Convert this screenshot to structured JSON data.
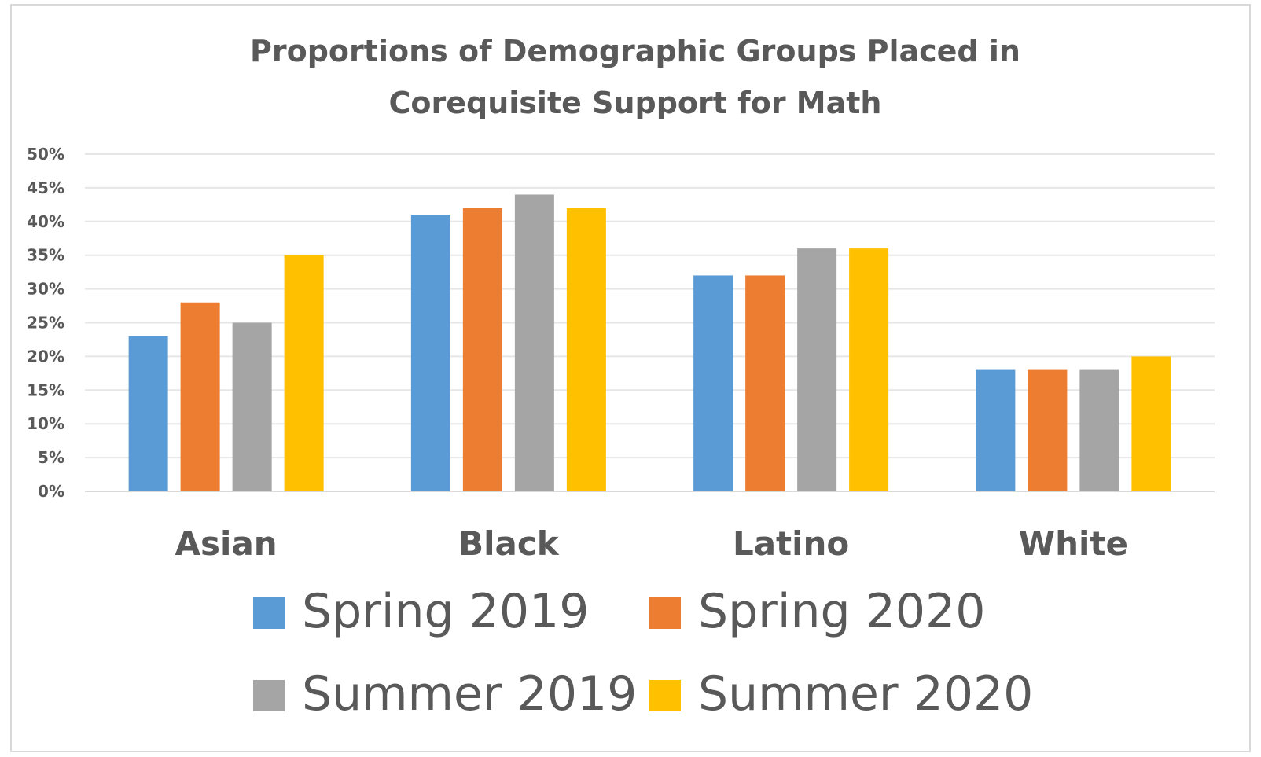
{
  "chart_data": {
    "type": "bar",
    "title_lines": [
      "Proportions of Demographic Groups Placed in",
      "Corequisite Support for Math"
    ],
    "categories": [
      "Asian",
      "Black",
      "Latino",
      "White"
    ],
    "series": [
      {
        "name": "Spring 2019",
        "color": "#5b9bd5",
        "values": [
          23,
          41,
          32,
          18
        ]
      },
      {
        "name": "Spring 2020",
        "color": "#ed7d31",
        "values": [
          28,
          42,
          32,
          18
        ]
      },
      {
        "name": "Summer 2019",
        "color": "#a5a5a5",
        "values": [
          25,
          44,
          36,
          18
        ]
      },
      {
        "name": "Summer 2020",
        "color": "#ffc000",
        "values": [
          35,
          42,
          36,
          20
        ]
      }
    ],
    "y_ticks": [
      "0%",
      "5%",
      "10%",
      "15%",
      "20%",
      "25%",
      "30%",
      "35%",
      "40%",
      "45%",
      "50%"
    ],
    "ylim": [
      0,
      50
    ],
    "grid": true,
    "legend_position": "bottom"
  }
}
